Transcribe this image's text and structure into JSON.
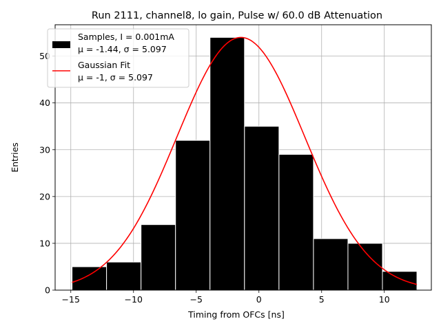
{
  "chart_data": {
    "type": "bar",
    "title": "Run 2111, channel8, lo gain, Pulse w/ 60.0 dB Attenuation",
    "xlabel": "Timing from OFCs [ns]",
    "ylabel": "Entries",
    "xlim": [
      -16.25,
      13.75
    ],
    "ylim": [
      0,
      56.7
    ],
    "xticks": [
      -15,
      -10,
      -5,
      0,
      5,
      10
    ],
    "yticks": [
      0,
      10,
      20,
      30,
      40,
      50
    ],
    "grid": true,
    "legend_position": "top-left",
    "bins": [
      {
        "x0": -14.9,
        "x1": -12.15,
        "count": 5
      },
      {
        "x0": -12.15,
        "x1": -9.4,
        "count": 6
      },
      {
        "x0": -9.4,
        "x1": -6.65,
        "count": 14
      },
      {
        "x0": -6.65,
        "x1": -3.9,
        "count": 32
      },
      {
        "x0": -3.9,
        "x1": -1.15,
        "count": 54
      },
      {
        "x0": -1.15,
        "x1": 1.6,
        "count": 35
      },
      {
        "x0": 1.6,
        "x1": 4.35,
        "count": 29
      },
      {
        "x0": 4.35,
        "x1": 7.1,
        "count": 11
      },
      {
        "x0": 7.1,
        "x1": 9.85,
        "count": 10
      },
      {
        "x0": 9.85,
        "x1": 12.6,
        "count": 4
      }
    ],
    "fit": {
      "type": "gaussian",
      "amplitude": 54,
      "mu": -1.44,
      "sigma": 5.097,
      "x_range": [
        -14.9,
        12.6
      ]
    },
    "series": [
      {
        "name": "Samples, I = 0.001mA",
        "stats_label": "μ = -1.44, σ = 5.097",
        "color": "#000000",
        "edge_color": "#ffffff"
      },
      {
        "name": "Gaussian Fit",
        "stats_label": "μ = -1, σ = 5.097",
        "color": "#ff0000"
      }
    ],
    "grid_color": "#b0b0b0"
  }
}
